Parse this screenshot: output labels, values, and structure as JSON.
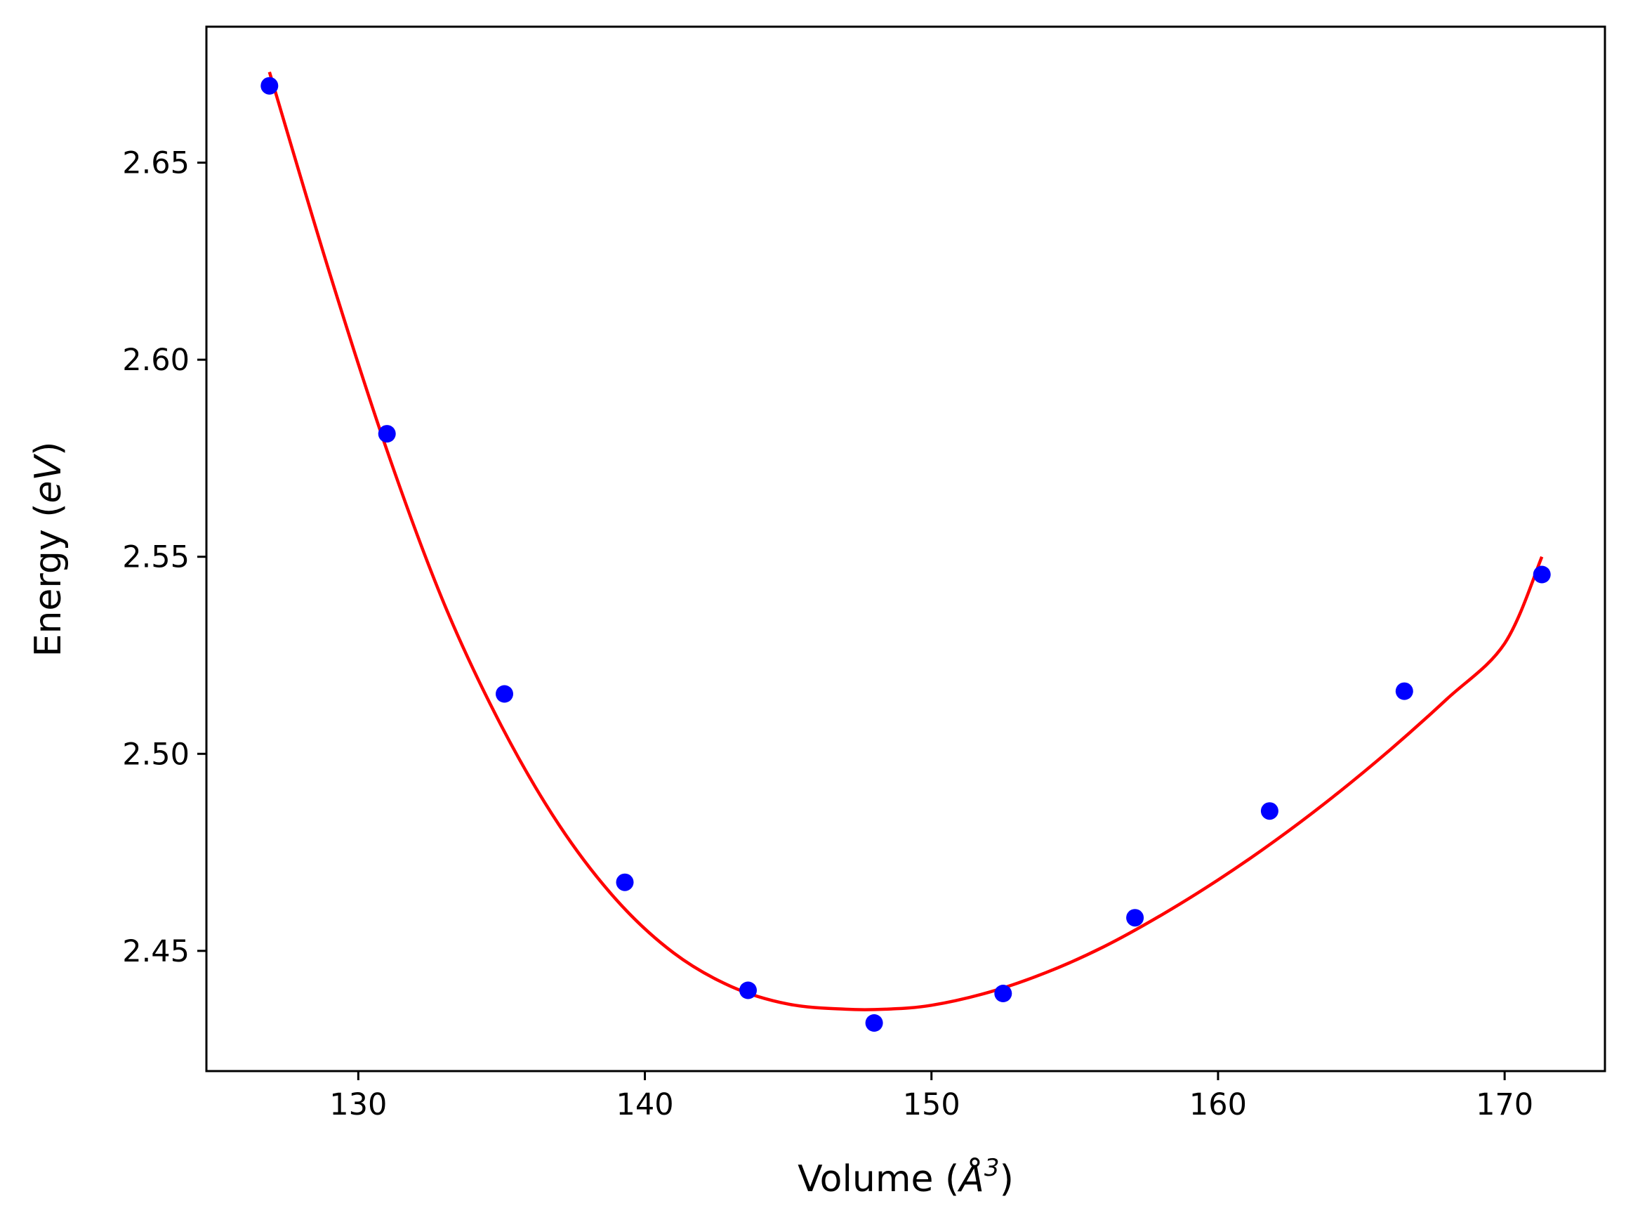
{
  "chart_data": {
    "type": "scatter",
    "xlabel": "Volume (",
    "xlabel_symbol": "Å",
    "xlabel_exponent": "3",
    "xlabel_close": ")",
    "ylabel": "Energy (",
    "ylabel_unit": "eV",
    "ylabel_close": ")",
    "xlim": [
      124.7,
      173.5
    ],
    "ylim": [
      2.4195,
      2.6845
    ],
    "xticks": [
      130,
      140,
      150,
      160,
      170
    ],
    "xtick_labels": [
      "130",
      "140",
      "150",
      "160",
      "170"
    ],
    "yticks": [
      2.45,
      2.5,
      2.55,
      2.6,
      2.65
    ],
    "ytick_labels": [
      "2.45",
      "2.50",
      "2.55",
      "2.60",
      "2.65"
    ],
    "grid": false,
    "series": [
      {
        "kind": "points",
        "color": "#0000ff",
        "x": [
          126.9,
          131.0,
          135.1,
          139.3,
          143.6,
          148.0,
          152.5,
          157.1,
          161.8,
          166.5,
          171.3
        ],
        "y": [
          2.6695,
          2.5812,
          2.5152,
          2.4674,
          2.44,
          2.4317,
          2.4392,
          2.4584,
          2.4855,
          2.5159,
          2.5455
        ]
      },
      {
        "kind": "fit-curve",
        "color": "#ff0000",
        "x": [
          126.9,
          129.0,
          131.0,
          133.0,
          135.0,
          137.0,
          139.0,
          141.0,
          143.0,
          145.0,
          147.0,
          148.4,
          150.0,
          152.0,
          154.0,
          156.0,
          158.0,
          160.0,
          162.0,
          164.0,
          166.0,
          168.0,
          170.0,
          171.3
        ],
        "y": [
          2.673,
          2.622,
          2.577,
          2.538,
          2.507,
          2.482,
          2.463,
          2.4495,
          2.441,
          2.4365,
          2.4352,
          2.4352,
          2.4362,
          2.4395,
          2.4445,
          2.451,
          2.459,
          2.468,
          2.478,
          2.489,
          2.501,
          2.514,
          2.528,
          2.55
        ]
      }
    ]
  }
}
